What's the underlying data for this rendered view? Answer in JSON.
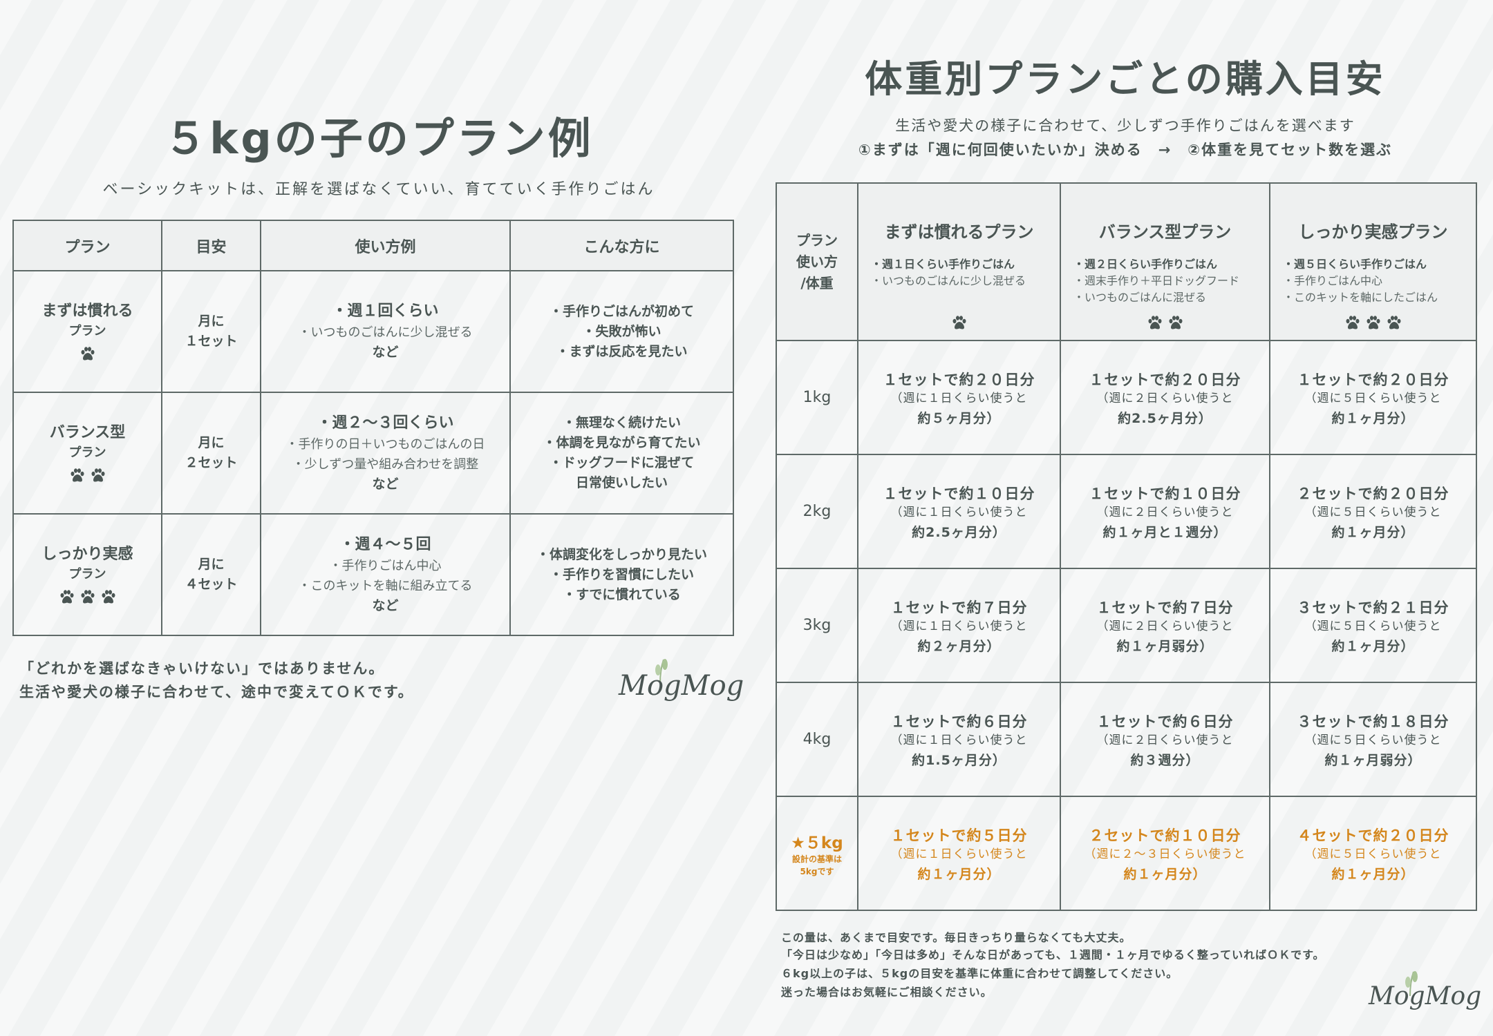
{
  "left": {
    "title": "５kgの子のプラン例",
    "subtitle": "ベーシックキットは、正解を選ばなくていい、育てていく手作りごはん",
    "headers": [
      "プラン",
      "目安",
      "使い方例",
      "こんな方に"
    ],
    "rows": [
      {
        "plan": "まずは慣れる",
        "plan_sub": "プラン",
        "paws": 1,
        "amount": [
          "月に",
          "１セット"
        ],
        "usage_lead": "・週１回くらい",
        "usage": [
          "・いつものごはんに少し混ぜる"
        ],
        "usage_end": "など",
        "for": [
          "・手作りごはんが初めて",
          "・失敗が怖い",
          "・まずは反応を見たい"
        ]
      },
      {
        "plan": "バランス型",
        "plan_sub": "プラン",
        "paws": 2,
        "amount": [
          "月に",
          "２セット"
        ],
        "usage_lead": "・週２〜３回くらい",
        "usage": [
          "・手作りの日＋いつものごはんの日",
          "・少しずつ量や組み合わせを調整"
        ],
        "usage_end": "など",
        "for": [
          "・無理なく続けたい",
          "・体調を見ながら育てたい",
          "・ドッグフードに混ぜて",
          "日常使いしたい"
        ]
      },
      {
        "plan": "しっかり実感",
        "plan_sub": "プラン",
        "paws": 3,
        "amount": [
          "月に",
          "４セット"
        ],
        "usage_lead": "・週４〜５回",
        "usage": [
          "・手作りごはん中心",
          "・このキットを軸に組み立てる"
        ],
        "usage_end": "など",
        "for": [
          "・体調変化をしっかり見たい",
          "・手作りを習慣にしたい",
          "・すでに慣れている"
        ]
      }
    ],
    "notes": [
      "「どれかを選ばなきゃいけない」ではありません。",
      "生活や愛犬の様子に合わせて、途中で変えてＯＫです。"
    ],
    "logo": "MogMog"
  },
  "right": {
    "title": "体重別プランごとの購入目安",
    "subtitle": "生活や愛犬の様子に合わせて、少しずつ手作りごはんを選べます",
    "steps": "①まずは「週に何回使いたいか」決める　→　②体重を見てセット数を選ぶ",
    "corner": [
      "プラン",
      "使い方",
      "/体重"
    ],
    "plans": [
      {
        "name": "まずは慣れるプラン",
        "items": [
          "・週１日くらい手作りごはん",
          "・いつものごはんに少し混ぜる"
        ],
        "paws": 1
      },
      {
        "name": "バランス型プラン",
        "items": [
          "・週２日くらい手作りごはん",
          "・週末手作り＋平日ドッグフード",
          "・いつものごはんに混ぜる"
        ],
        "paws": 2
      },
      {
        "name": "しっかり実感プラン",
        "items": [
          "・週５日くらい手作りごはん",
          "・手作りごはん中心",
          "・このキットを軸にしたごはん"
        ],
        "paws": 3
      }
    ],
    "rows": [
      {
        "weight": "1kg",
        "cells": [
          [
            "１セットで約２０日分",
            "（週に１日くらい使うと",
            "約５ヶ月分）"
          ],
          [
            "１セットで約２０日分",
            "（週に２日くらい使うと",
            "約2.5ヶ月分）"
          ],
          [
            "１セットで約２０日分",
            "（週に５日くらい使うと",
            "約１ヶ月分）"
          ]
        ]
      },
      {
        "weight": "2kg",
        "cells": [
          [
            "１セットで約１０日分",
            "（週に１日くらい使うと",
            "約2.5ヶ月分）"
          ],
          [
            "１セットで約１０日分",
            "（週に２日くらい使うと",
            "約１ヶ月と１週分）"
          ],
          [
            "２セットで約２０日分",
            "（週に５日くらい使うと",
            "約１ヶ月分）"
          ]
        ]
      },
      {
        "weight": "3kg",
        "cells": [
          [
            "１セットで約７日分",
            "（週に１日くらい使うと",
            "約２ヶ月分）"
          ],
          [
            "１セットで約７日分",
            "（週に２日くらい使うと",
            "約１ヶ月弱分）"
          ],
          [
            "３セットで約２１日分",
            "（週に５日くらい使うと",
            "約１ヶ月分）"
          ]
        ]
      },
      {
        "weight": "4kg",
        "cells": [
          [
            "１セットで約６日分",
            "（週に１日くらい使うと",
            "約1.5ヶ月分）"
          ],
          [
            "１セットで約６日分",
            "（週に２日くらい使うと",
            "約３週分）"
          ],
          [
            "３セットで約１８日分",
            "（週に５日くらい使うと",
            "約１ヶ月弱分）"
          ]
        ]
      },
      {
        "weight": "★５kg",
        "note": [
          "設計の基準は",
          "5kgです"
        ],
        "highlight": true,
        "cells": [
          [
            "１セットで約５日分",
            "（週に１日くらい使うと",
            "約１ヶ月分）"
          ],
          [
            "２セットで約１０日分",
            "（週に２〜３日くらい使うと",
            "約１ヶ月分）"
          ],
          [
            "４セットで約２０日分",
            "（週に５日くらい使うと",
            "約１ヶ月分）"
          ]
        ]
      }
    ],
    "notes": [
      "この量は、あくまで目安です。毎日きっちり量らなくても大丈夫。",
      "「今日は少なめ」「今日は多め」そんな日があっても、１週間・１ヶ月でゆるく整っていればＯＫです。",
      "６kg以上の子は、５kgの目安を基準に体重に合わせて調整してください。",
      "迷った場合はお気軽にご相談ください。"
    ],
    "logo": "MogMog"
  },
  "colors": {
    "text": "#4a5553",
    "highlight": "#d4861c",
    "header_bg": "#eef0f0",
    "border": "#5e6967",
    "leaf": "#9bb78a"
  },
  "icons": {
    "paw": "paw-icon",
    "leaf": "leaf-icon"
  }
}
